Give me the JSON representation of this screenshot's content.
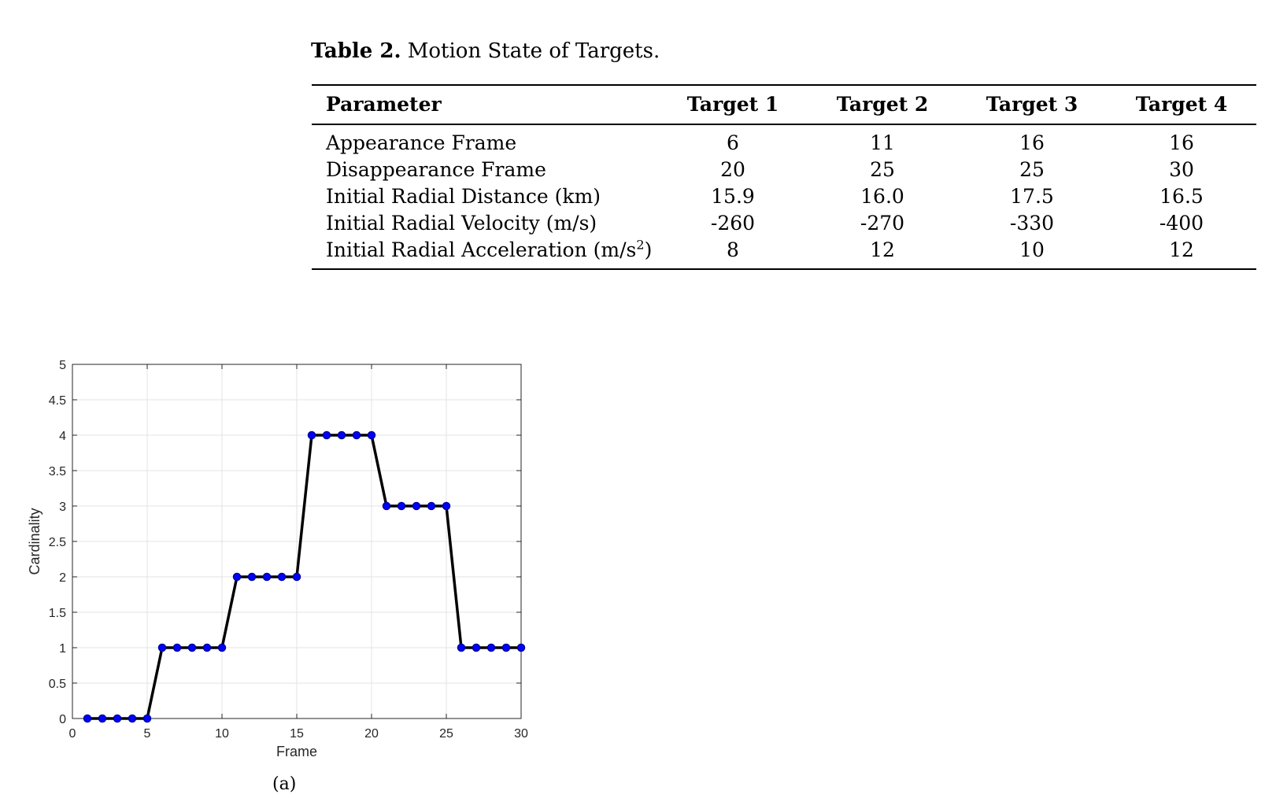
{
  "table": {
    "caption_label": "Table 2.",
    "caption_text": "Motion State of Targets.",
    "headers": [
      "Parameter",
      "Target 1",
      "Target 2",
      "Target 3",
      "Target 4"
    ],
    "rows": [
      {
        "param": "Appearance Frame",
        "values": [
          "6",
          "11",
          "16",
          "16"
        ]
      },
      {
        "param": "Disappearance Frame",
        "values": [
          "20",
          "25",
          "25",
          "30"
        ]
      },
      {
        "param": "Initial Radial Distance (km)",
        "values": [
          "15.9",
          "16.0",
          "17.5",
          "16.5"
        ]
      },
      {
        "param": "Initial Radial Velocity (m/s)",
        "values": [
          "-260",
          "-270",
          "-330",
          "-400"
        ]
      },
      {
        "param_prefix": "Initial Radial Acceleration (m/s",
        "param_sup": "2",
        "param_suffix": ")",
        "values": [
          "8",
          "12",
          "10",
          "12"
        ]
      }
    ]
  },
  "figure": {
    "sublabel": "(a)"
  },
  "chart_data": {
    "type": "line",
    "xlabel": "Frame",
    "ylabel": "Cardinality",
    "xlim": [
      0,
      30
    ],
    "ylim": [
      0,
      5
    ],
    "xticks": [
      0,
      5,
      10,
      15,
      20,
      25,
      30
    ],
    "yticks": [
      0,
      0.5,
      1,
      1.5,
      2,
      2.5,
      3,
      3.5,
      4,
      4.5,
      5
    ],
    "grid": true,
    "series": [
      {
        "line_color": "#000000",
        "marker_color": "#0000ff",
        "x": [
          1,
          2,
          3,
          4,
          5,
          6,
          7,
          8,
          9,
          10,
          11,
          12,
          13,
          14,
          15,
          16,
          17,
          18,
          19,
          20,
          21,
          22,
          23,
          24,
          25,
          26,
          27,
          28,
          29,
          30
        ],
        "y": [
          0,
          0,
          0,
          0,
          0,
          1,
          1,
          1,
          1,
          1,
          2,
          2,
          2,
          2,
          2,
          4,
          4,
          4,
          4,
          4,
          3,
          3,
          3,
          3,
          3,
          1,
          1,
          1,
          1,
          1
        ]
      }
    ]
  }
}
